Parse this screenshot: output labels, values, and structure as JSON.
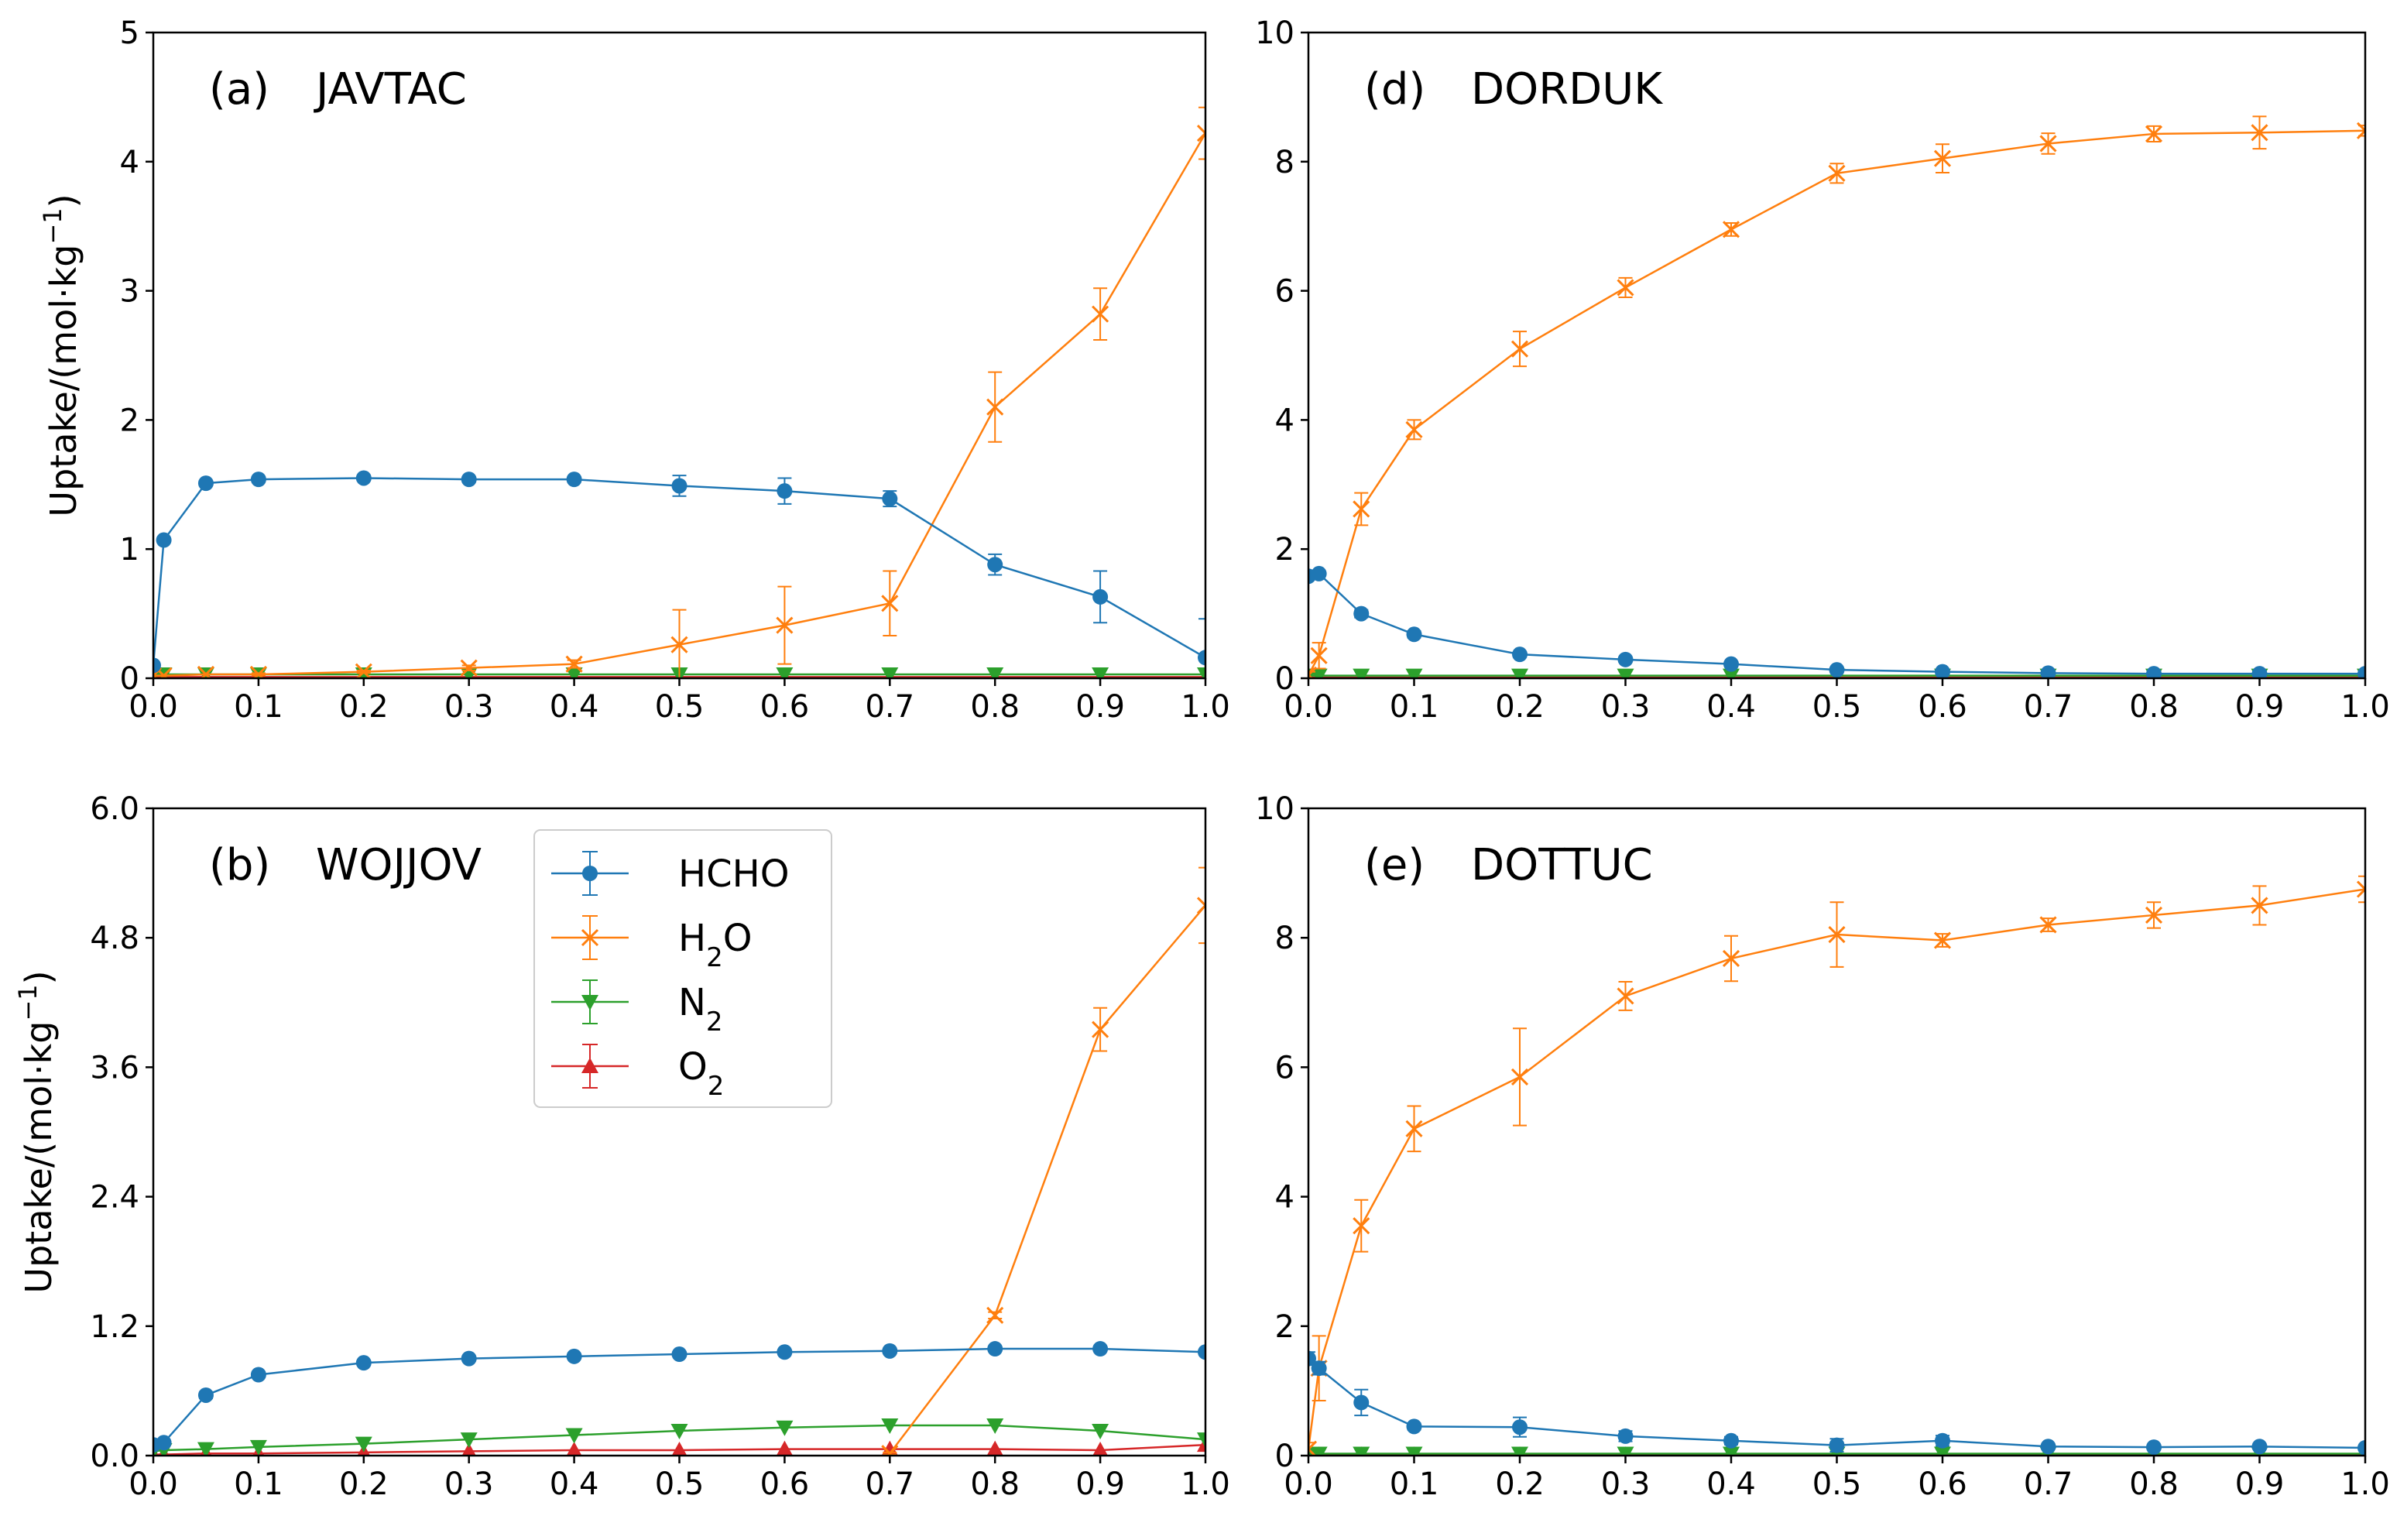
{
  "colors": {
    "HCHO": "#1f77b4",
    "H2O": "#ff7f0e",
    "N2": "#2ca02c",
    "O2": "#d62728"
  },
  "legend": {
    "entries": [
      {
        "key": "HCHO",
        "base": "HCHO",
        "sub": "",
        "marker": "circle"
      },
      {
        "key": "H2O",
        "base": "H",
        "sub": "2",
        "tail": "O",
        "marker": "x"
      },
      {
        "key": "N2",
        "base": "N",
        "sub": "2",
        "marker": "tri-down"
      },
      {
        "key": "O2",
        "base": "O",
        "sub": "2",
        "marker": "tri-up"
      }
    ]
  },
  "ylabel": {
    "text": "Uptake/(mol·kg",
    "sup": "−1",
    "close": ")"
  },
  "chart_data": [
    {
      "id": "a",
      "label": "(a)",
      "name": "JAVTAC",
      "type": "line",
      "xlim": [
        0,
        1
      ],
      "ylim": [
        0,
        5
      ],
      "xticks": [
        "0.0",
        "0.1",
        "0.2",
        "0.3",
        "0.4",
        "0.5",
        "0.6",
        "0.7",
        "0.8",
        "0.9",
        "1.0"
      ],
      "yticks": [
        "0",
        "1",
        "2",
        "3",
        "4",
        "5"
      ],
      "show_ylabel": true,
      "series": [
        {
          "name": "HCHO",
          "x": [
            0,
            0.01,
            0.05,
            0.1,
            0.2,
            0.3,
            0.4,
            0.5,
            0.6,
            0.7,
            0.8,
            0.9,
            1.0
          ],
          "y": [
            0.1,
            1.07,
            1.51,
            1.54,
            1.55,
            1.54,
            1.54,
            1.49,
            1.45,
            1.39,
            0.88,
            0.63,
            0.16
          ],
          "err": [
            0.02,
            0.02,
            0.02,
            0.02,
            0.02,
            0.02,
            0.02,
            0.08,
            0.1,
            0.06,
            0.08,
            0.2,
            0.3
          ]
        },
        {
          "name": "H2O",
          "x": [
            0,
            0.01,
            0.05,
            0.1,
            0.2,
            0.3,
            0.4,
            0.5,
            0.6,
            0.7,
            0.8,
            0.9,
            1.0
          ],
          "y": [
            0.02,
            0.02,
            0.03,
            0.03,
            0.05,
            0.08,
            0.11,
            0.26,
            0.41,
            0.58,
            2.1,
            2.82,
            4.22
          ],
          "err": [
            0,
            0,
            0,
            0.01,
            0.01,
            0.02,
            0.03,
            0.27,
            0.3,
            0.25,
            0.27,
            0.2,
            0.2
          ]
        },
        {
          "name": "N2",
          "x": [
            0,
            0.01,
            0.05,
            0.1,
            0.2,
            0.3,
            0.4,
            0.5,
            0.6,
            0.7,
            0.8,
            0.9,
            1.0
          ],
          "y": [
            0.03,
            0.03,
            0.03,
            0.03,
            0.03,
            0.03,
            0.03,
            0.03,
            0.03,
            0.03,
            0.03,
            0.03,
            0.03
          ],
          "err": [
            0,
            0,
            0,
            0,
            0,
            0,
            0,
            0,
            0,
            0,
            0,
            0,
            0
          ]
        },
        {
          "name": "O2",
          "x": [
            0,
            0.01,
            0.05,
            0.1,
            0.2,
            0.3,
            0.4,
            0.5,
            0.6,
            0.7,
            0.8,
            0.9,
            1.0
          ],
          "y": [
            0.01,
            0.01,
            0.01,
            0.01,
            0.01,
            0.01,
            0.01,
            0.01,
            0.01,
            0.01,
            0.01,
            0.01,
            0.01
          ],
          "err": [
            0,
            0,
            0,
            0,
            0,
            0,
            0,
            0,
            0,
            0,
            0,
            0,
            0
          ]
        }
      ]
    },
    {
      "id": "d",
      "label": "(d)",
      "name": "DORDUK",
      "type": "line",
      "xlim": [
        0,
        1
      ],
      "ylim": [
        0,
        10
      ],
      "xticks": [
        "0.0",
        "0.1",
        "0.2",
        "0.3",
        "0.4",
        "0.5",
        "0.6",
        "0.7",
        "0.8",
        "0.9",
        "1.0"
      ],
      "yticks": [
        "0",
        "2",
        "4",
        "6",
        "8",
        "10"
      ],
      "show_ylabel": false,
      "series": [
        {
          "name": "HCHO",
          "x": [
            0,
            0.01,
            0.05,
            0.1,
            0.2,
            0.3,
            0.4,
            0.5,
            0.6,
            0.7,
            0.8,
            0.9,
            1.0
          ],
          "y": [
            1.58,
            1.62,
            1.0,
            0.68,
            0.37,
            0.29,
            0.22,
            0.13,
            0.1,
            0.08,
            0.07,
            0.07,
            0.07
          ],
          "err": [
            0.02,
            0.02,
            0.06,
            0.05,
            0.04,
            0.03,
            0.03,
            0.02,
            0.02,
            0.02,
            0.02,
            0.02,
            0.02
          ]
        },
        {
          "name": "H2O",
          "x": [
            0,
            0.01,
            0.05,
            0.1,
            0.2,
            0.3,
            0.4,
            0.5,
            0.6,
            0.7,
            0.8,
            0.9,
            1.0
          ],
          "y": [
            0.05,
            0.35,
            2.62,
            3.85,
            5.1,
            6.05,
            6.95,
            7.82,
            8.05,
            8.28,
            8.43,
            8.45,
            8.48
          ],
          "err": [
            0.05,
            0.2,
            0.25,
            0.15,
            0.27,
            0.15,
            0.1,
            0.15,
            0.22,
            0.16,
            0.12,
            0.25,
            0.08
          ]
        },
        {
          "name": "N2",
          "x": [
            0,
            0.01,
            0.05,
            0.1,
            0.2,
            0.3,
            0.4,
            0.5,
            0.6,
            0.7,
            0.8,
            0.9,
            1.0
          ],
          "y": [
            0.04,
            0.04,
            0.04,
            0.04,
            0.04,
            0.04,
            0.04,
            0.04,
            0.04,
            0.04,
            0.04,
            0.04,
            0.04
          ],
          "err": [
            0,
            0,
            0,
            0,
            0,
            0,
            0,
            0,
            0,
            0,
            0,
            0,
            0
          ]
        },
        {
          "name": "O2",
          "x": [
            0,
            0.01,
            0.05,
            0.1,
            0.2,
            0.3,
            0.4,
            0.5,
            0.6,
            0.7,
            0.8,
            0.9,
            1.0
          ],
          "y": [
            0.01,
            0.01,
            0.01,
            0.01,
            0.01,
            0.01,
            0.01,
            0.01,
            0.01,
            0.01,
            0.01,
            0.01,
            0.01
          ],
          "err": [
            0,
            0,
            0,
            0,
            0,
            0,
            0,
            0,
            0,
            0,
            0,
            0,
            0
          ]
        }
      ]
    },
    {
      "id": "b",
      "label": "(b)",
      "name": "WOJJOV",
      "type": "line",
      "xlim": [
        0,
        1
      ],
      "ylim": [
        0,
        6
      ],
      "xticks": [
        "0.0",
        "0.1",
        "0.2",
        "0.3",
        "0.4",
        "0.5",
        "0.6",
        "0.7",
        "0.8",
        "0.9",
        "1.0"
      ],
      "yticks": [
        "0.0",
        "1.2",
        "2.4",
        "3.6",
        "4.8",
        "6.0"
      ],
      "show_ylabel": true,
      "series": [
        {
          "name": "HCHO",
          "x": [
            0,
            0.01,
            0.05,
            0.1,
            0.2,
            0.3,
            0.4,
            0.5,
            0.6,
            0.7,
            0.8,
            0.9,
            1.0
          ],
          "y": [
            0.1,
            0.12,
            0.56,
            0.75,
            0.86,
            0.9,
            0.92,
            0.94,
            0.96,
            0.97,
            0.99,
            0.99,
            0.96
          ],
          "err": [
            0.02,
            0.02,
            0.03,
            0.02,
            0.02,
            0.02,
            0.02,
            0.02,
            0.02,
            0.02,
            0.02,
            0.02,
            0.02
          ]
        },
        {
          "name": "H2O",
          "x": [
            0.7,
            0.8,
            0.9,
            1.0
          ],
          "y": [
            0.02,
            1.3,
            3.95,
            5.1
          ],
          "err": [
            0.01,
            0.03,
            0.2,
            0.35
          ]
        },
        {
          "name": "N2",
          "x": [
            0,
            0.01,
            0.05,
            0.1,
            0.2,
            0.3,
            0.4,
            0.5,
            0.6,
            0.7,
            0.8,
            0.9,
            1.0
          ],
          "y": [
            0.04,
            0.05,
            0.06,
            0.08,
            0.11,
            0.15,
            0.19,
            0.23,
            0.26,
            0.28,
            0.28,
            0.23,
            0.15
          ],
          "err": [
            0,
            0,
            0,
            0,
            0,
            0,
            0,
            0,
            0,
            0,
            0,
            0,
            0
          ]
        },
        {
          "name": "O2",
          "x": [
            0,
            0.01,
            0.05,
            0.1,
            0.2,
            0.3,
            0.4,
            0.5,
            0.6,
            0.7,
            0.8,
            0.9,
            1.0
          ],
          "y": [
            0.01,
            0.01,
            0.02,
            0.02,
            0.03,
            0.04,
            0.05,
            0.05,
            0.06,
            0.06,
            0.06,
            0.05,
            0.1
          ],
          "err": [
            0,
            0,
            0,
            0,
            0,
            0,
            0,
            0,
            0,
            0,
            0,
            0,
            0
          ]
        }
      ]
    },
    {
      "id": "e",
      "label": "(e)",
      "name": "DOTTUC",
      "type": "line",
      "xlim": [
        0,
        1
      ],
      "ylim": [
        0,
        10
      ],
      "xticks": [
        "0.0",
        "0.1",
        "0.2",
        "0.3",
        "0.4",
        "0.5",
        "0.6",
        "0.7",
        "0.8",
        "0.9",
        "1.0"
      ],
      "yticks": [
        "0",
        "2",
        "4",
        "6",
        "8",
        "10"
      ],
      "show_ylabel": false,
      "series": [
        {
          "name": "HCHO",
          "x": [
            0,
            0.01,
            0.05,
            0.1,
            0.2,
            0.3,
            0.4,
            0.5,
            0.6,
            0.7,
            0.8,
            0.9,
            1.0
          ],
          "y": [
            1.5,
            1.35,
            0.82,
            0.45,
            0.44,
            0.3,
            0.23,
            0.16,
            0.23,
            0.14,
            0.13,
            0.14,
            0.12
          ],
          "err": [
            0.1,
            0.1,
            0.2,
            0.05,
            0.15,
            0.08,
            0.06,
            0.1,
            0.08,
            0.04,
            0.04,
            0.04,
            0.03
          ]
        },
        {
          "name": "H2O",
          "x": [
            0,
            0.01,
            0.05,
            0.1,
            0.2,
            0.3,
            0.4,
            0.5,
            0.6,
            0.7,
            0.8,
            0.9,
            1.0
          ],
          "y": [
            0.1,
            1.35,
            3.55,
            5.05,
            5.85,
            7.1,
            7.68,
            8.05,
            7.96,
            8.2,
            8.35,
            8.5,
            8.75
          ],
          "err": [
            0.1,
            0.5,
            0.4,
            0.35,
            0.75,
            0.22,
            0.35,
            0.5,
            0.1,
            0.1,
            0.2,
            0.3,
            0.2
          ]
        },
        {
          "name": "N2",
          "x": [
            0,
            0.01,
            0.05,
            0.1,
            0.2,
            0.3,
            0.4,
            0.5,
            0.6,
            0.7,
            0.8,
            0.9,
            1.0
          ],
          "y": [
            0.03,
            0.03,
            0.03,
            0.03,
            0.03,
            0.03,
            0.03,
            0.03,
            0.03,
            0.03,
            0.03,
            0.03,
            0.03
          ],
          "err": [
            0,
            0,
            0,
            0,
            0,
            0,
            0,
            0,
            0,
            0,
            0,
            0,
            0
          ]
        },
        {
          "name": "O2",
          "x": [
            0,
            0.01,
            0.05,
            0.1,
            0.2,
            0.3,
            0.4,
            0.5,
            0.6,
            0.7,
            0.8,
            0.9,
            1.0
          ],
          "y": [
            0.01,
            0.01,
            0.01,
            0.01,
            0.01,
            0.01,
            0.01,
            0.01,
            0.01,
            0.01,
            0.01,
            0.01,
            0.01
          ],
          "err": [
            0,
            0,
            0,
            0,
            0,
            0,
            0,
            0,
            0,
            0,
            0,
            0,
            0
          ]
        }
      ]
    }
  ]
}
